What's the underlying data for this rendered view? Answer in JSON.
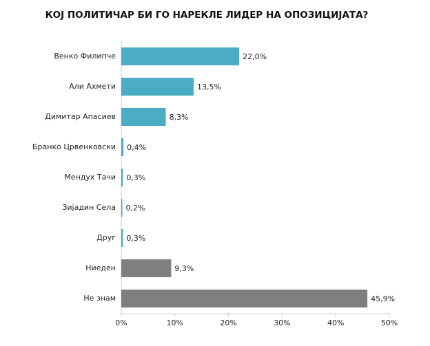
{
  "chart_data": {
    "type": "hbar",
    "title": "КОЈ ПОЛИТИЧАР БИ ГО НАРЕКЛЕ ЛИДЕР НА ОПОЗИЦИЈАТА?",
    "categories": [
      "Венко Филипче",
      "Али Ахмети",
      "Димитар Апасиев",
      "Бранко Црвенковски",
      "Мендух Тачи",
      "Зијадин Села",
      "Друг",
      "Ниеден",
      "Не знам"
    ],
    "values": [
      22.0,
      13.5,
      8.3,
      0.4,
      0.3,
      0.2,
      0.3,
      9.3,
      45.9
    ],
    "value_labels": [
      "22,0%",
      "13,5%",
      "8,3%",
      "0,4%",
      "0,3%",
      "0,2%",
      "0,3%",
      "9,3%",
      "45,9%"
    ],
    "colors": [
      "#4bacc6",
      "#4bacc6",
      "#4bacc6",
      "#4bacc6",
      "#4bacc6",
      "#4bacc6",
      "#4bacc6",
      "#7f7f7f",
      "#7f7f7f"
    ],
    "xlim": [
      0,
      50
    ],
    "xticks": [
      {
        "value": 0,
        "label": "0%"
      },
      {
        "value": 10,
        "label": "10%"
      },
      {
        "value": 20,
        "label": "20%"
      },
      {
        "value": 30,
        "label": "30%"
      },
      {
        "value": 40,
        "label": "40%"
      },
      {
        "value": 50,
        "label": "50%"
      }
    ]
  }
}
